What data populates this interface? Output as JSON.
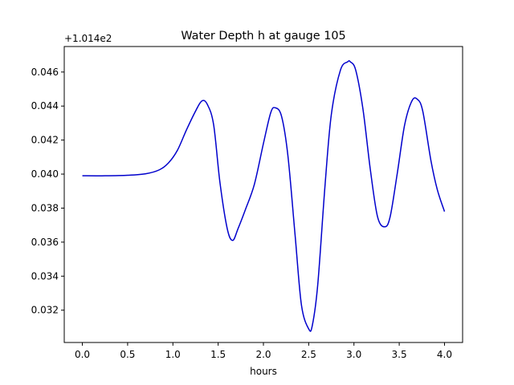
{
  "chart_data": {
    "type": "line",
    "title": "Water Depth h at gauge 105",
    "xlabel": "hours",
    "ylabel": "",
    "y_offset_label": "+1.014e2",
    "xlim": [
      -0.2,
      4.2
    ],
    "ylim": [
      0.0301,
      0.0475
    ],
    "grid": false,
    "x_ticks": [
      0.0,
      0.5,
      1.0,
      1.5,
      2.0,
      2.5,
      3.0,
      3.5,
      4.0
    ],
    "x_tick_labels": [
      "0.0",
      "0.5",
      "1.0",
      "1.5",
      "2.0",
      "2.5",
      "3.0",
      "3.5",
      "4.0"
    ],
    "y_ticks": [
      0.032,
      0.034,
      0.036,
      0.038,
      0.04,
      0.042,
      0.044,
      0.046
    ],
    "y_tick_labels": [
      "0.032",
      "0.034",
      "0.036",
      "0.038",
      "0.040",
      "0.042",
      "0.044",
      "0.046"
    ],
    "series": [
      {
        "color": "#0000cc",
        "x": [
          0.0,
          0.25,
          0.5,
          0.7,
          0.85,
          0.95,
          1.05,
          1.15,
          1.25,
          1.32,
          1.38,
          1.45,
          1.52,
          1.6,
          1.66,
          1.72,
          1.8,
          1.9,
          2.0,
          2.08,
          2.13,
          2.2,
          2.27,
          2.35,
          2.42,
          2.5,
          2.54,
          2.6,
          2.68,
          2.75,
          2.85,
          2.93,
          2.96,
          3.02,
          3.1,
          3.18,
          3.26,
          3.34,
          3.4,
          3.48,
          3.56,
          3.64,
          3.7,
          3.76,
          3.85,
          3.92,
          4.0
        ],
        "y": [
          0.0399,
          0.0399,
          0.03993,
          0.04002,
          0.04025,
          0.04065,
          0.0414,
          0.0426,
          0.0437,
          0.0443,
          0.0441,
          0.0429,
          0.0395,
          0.0368,
          0.0361,
          0.0368,
          0.0379,
          0.0394,
          0.0418,
          0.0436,
          0.0439,
          0.0434,
          0.0411,
          0.0364,
          0.0323,
          0.0309,
          0.0311,
          0.0335,
          0.0393,
          0.0435,
          0.0461,
          0.0466,
          0.0466,
          0.0461,
          0.0438,
          0.0403,
          0.0375,
          0.0369,
          0.0375,
          0.0401,
          0.0429,
          0.0443,
          0.0444,
          0.0437,
          0.0408,
          0.0391,
          0.0378
        ]
      }
    ]
  }
}
